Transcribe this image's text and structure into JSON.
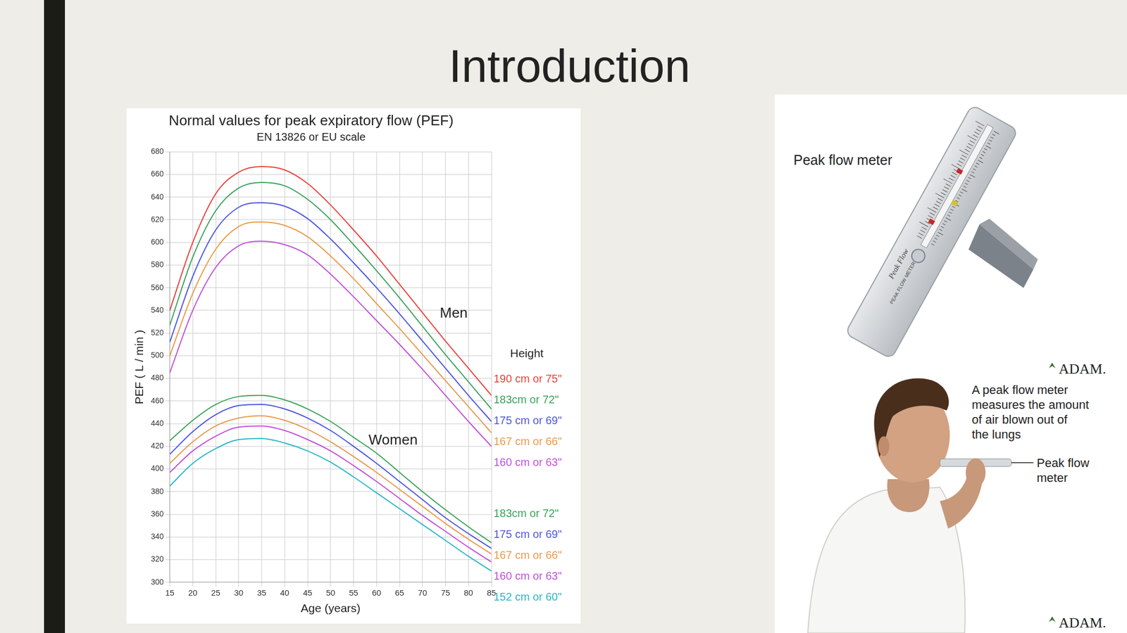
{
  "slide": {
    "title": "Introduction"
  },
  "chart_data": {
    "type": "line",
    "title": "Normal values for peak expiratory flow (PEF)",
    "subtitle": "EN 13826 or EU scale",
    "x_label": "Age (years)",
    "y_label": "PEF ( L / min )",
    "legend_title": "Height",
    "x": [
      15,
      20,
      25,
      30,
      35,
      40,
      45,
      50,
      55,
      60,
      65,
      70,
      75,
      80,
      85
    ],
    "series": [
      {
        "name": "190 cm or 75\"",
        "group": "Men",
        "color": "#e8423c",
        "values": [
          540,
          600,
          643,
          662,
          667,
          664,
          652,
          633,
          611,
          588,
          563,
          538,
          513,
          489,
          465
        ]
      },
      {
        "name": "183cm or 72\"",
        "group": "Men",
        "color": "#3aa35a",
        "values": [
          527,
          587,
          628,
          648,
          653,
          650,
          638,
          620,
          598,
          575,
          551,
          526,
          501,
          477,
          453
        ]
      },
      {
        "name": "175 cm or 69\"",
        "group": "Men",
        "color": "#4a55e0",
        "values": [
          512,
          570,
          611,
          631,
          635,
          632,
          621,
          603,
          582,
          560,
          537,
          513,
          489,
          465,
          442
        ]
      },
      {
        "name": "167 cm or 66\"",
        "group": "Men",
        "color": "#e89a4a",
        "values": [
          500,
          555,
          594,
          614,
          618,
          615,
          605,
          588,
          568,
          546,
          524,
          501,
          478,
          455,
          432
        ]
      },
      {
        "name": "160 cm or 63\"",
        "group": "Men",
        "color": "#c050d8",
        "values": [
          485,
          540,
          578,
          597,
          601,
          598,
          589,
          572,
          552,
          531,
          510,
          488,
          465,
          442,
          420
        ]
      },
      {
        "name": "183cm or 72\"",
        "group": "Women",
        "color": "#3aa35a",
        "values": [
          425,
          443,
          457,
          464,
          465,
          461,
          453,
          442,
          428,
          414,
          397,
          380,
          364,
          349,
          335
        ]
      },
      {
        "name": "175 cm or 69\"",
        "group": "Women",
        "color": "#4a55e0",
        "values": [
          413,
          433,
          448,
          456,
          457,
          453,
          445,
          434,
          420,
          405,
          389,
          373,
          357,
          343,
          330
        ]
      },
      {
        "name": "167 cm or 66\"",
        "group": "Women",
        "color": "#e89a4a",
        "values": [
          405,
          424,
          438,
          445,
          447,
          443,
          435,
          424,
          411,
          397,
          382,
          367,
          352,
          338,
          325
        ]
      },
      {
        "name": "160 cm or 63\"",
        "group": "Women",
        "color": "#c050d8",
        "values": [
          397,
          416,
          429,
          437,
          438,
          434,
          426,
          416,
          403,
          389,
          374,
          359,
          345,
          331,
          318
        ]
      },
      {
        "name": "152 cm or 60\"",
        "group": "Women",
        "color": "#2ab6c8",
        "values": [
          385,
          405,
          418,
          426,
          427,
          423,
          416,
          406,
          393,
          379,
          365,
          351,
          337,
          323,
          310
        ]
      }
    ],
    "annotations": [
      {
        "text": "Men",
        "x": 76.8,
        "y": 537
      },
      {
        "text": "Women",
        "x": 63.6,
        "y": 425
      }
    ],
    "xlim": [
      15,
      85
    ],
    "xticks": [
      15,
      20,
      25,
      30,
      35,
      40,
      45,
      50,
      55,
      60,
      65,
      70,
      75,
      80,
      85
    ],
    "ylim": [
      300,
      680
    ],
    "yticks": [
      300,
      320,
      340,
      360,
      380,
      400,
      420,
      440,
      460,
      480,
      500,
      520,
      540,
      560,
      580,
      600,
      620,
      640,
      660,
      680
    ],
    "grid": true
  },
  "illustration": {
    "meter_label": "Peak flow meter",
    "device_text": [
      "Peak Flow",
      "PEAK FLOW METER"
    ],
    "caption": [
      "A peak flow meter",
      "measures the amount",
      "of air blown out of",
      "the lungs"
    ],
    "pointer_label": [
      "Peak flow",
      "meter"
    ],
    "credit": [
      "ADAM.",
      "ADAM."
    ]
  }
}
